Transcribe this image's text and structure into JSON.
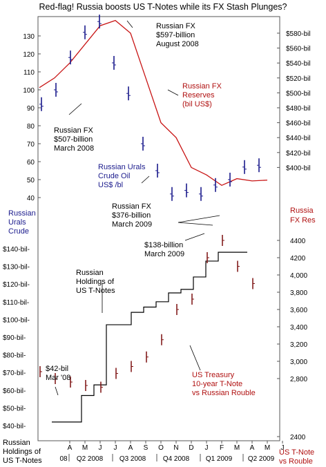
{
  "title": "Red-flag! Russia boosts US T-Notes while its FX Stash Plunges?",
  "colors": {
    "oil": "#1a1a8c",
    "fx": "#c81414",
    "tnote_bars": "#7a0e0e",
    "holdings": "#000000",
    "text_red": "#b01010",
    "text_blue": "#1a1a8c"
  },
  "axes": {
    "top_left_ticks": [
      "130",
      "120",
      "110",
      "100",
      "90",
      "80",
      "70",
      "60",
      "50",
      "40"
    ],
    "top_left_label": [
      "Russian",
      "Urals",
      "Crude"
    ],
    "top_right_ticks": [
      "$580-bil",
      "$560-bil",
      "$540-bil",
      "$520-bil",
      "$500-bil",
      "$480-bil",
      "$460-bil",
      "$440-bil",
      "$420-bil",
      "$400-bil"
    ],
    "top_right_label": [
      "Russia",
      "FX Res"
    ],
    "bottom_left_ticks": [
      "$140-bil-",
      "$130-bil-",
      "$120-bil-",
      "$110-bil-",
      "$100-bil-",
      "$90-bil-",
      "$80-bil-",
      "$70-bil-",
      "$60-bil-",
      "$50-bil-",
      "$40-bil-"
    ],
    "bottom_left_label": [
      "Russian",
      "Holdings of",
      "US T-Notes"
    ],
    "bottom_right_ticks": [
      "4400",
      "4200",
      "4,000",
      "3,800",
      "3,600",
      "3,400",
      "3,200",
      "3,000",
      "2,800",
      "2400"
    ],
    "bottom_right_label": [
      "US T-Note",
      "vs Rouble"
    ],
    "months": [
      "A",
      "M",
      "J",
      "J",
      "A",
      "S",
      "O",
      "N",
      "D",
      "J",
      "F",
      "M",
      "A",
      "M",
      "J"
    ],
    "quarters": [
      "08",
      "Q2 2008",
      "Q3 2008",
      "Q4 2008",
      "Q1 2009",
      "Q2 2009"
    ]
  },
  "annotations": {
    "fx_peak": [
      "Russian FX",
      "$597-billion",
      "August 2008"
    ],
    "fx_reserves": [
      "Russian FX",
      "Reserves",
      "(bil US$)"
    ],
    "fx_march08": [
      "Russian FX",
      "$507-billion",
      "March 2008"
    ],
    "urals": [
      "Russian Urals",
      "Crude Oil",
      "US$ /bl"
    ],
    "fx_march09": [
      "Russian FX",
      "$376-billion",
      "March 2009"
    ],
    "holdings_march09": [
      "$138-billion",
      "March 2009"
    ],
    "holdings_label": [
      "Russian",
      "Holdings of",
      "US T-Notes"
    ],
    "holdings_march08": [
      "$42-bil",
      "Mar '08"
    ],
    "tnote_label": [
      "US Treasury",
      "10-year T-Note",
      "vs Russian Rouble"
    ]
  },
  "chart_data": [
    {
      "type": "line",
      "title": "Russian FX Reserves (bil US$)",
      "x": [
        "2008-03",
        "2008-04",
        "2008-05",
        "2008-06",
        "2008-07",
        "2008-08",
        "2008-09",
        "2008-10",
        "2008-11",
        "2008-12",
        "2009-01",
        "2009-02",
        "2009-03",
        "2009-04",
        "2009-05",
        "2009-06"
      ],
      "series": [
        {
          "name": "Russian FX Reserves",
          "values": [
            507,
            520,
            540,
            565,
            590,
            597,
            580,
            520,
            460,
            440,
            400,
            390,
            376,
            385,
            382,
            383
          ]
        }
      ],
      "ylim": [
        380,
        600
      ]
    },
    {
      "type": "bar",
      "title": "Russian Urals Crude Oil US$ /bl",
      "x": [
        "2008-03",
        "2008-04",
        "2008-05",
        "2008-06",
        "2008-07",
        "2008-08",
        "2008-09",
        "2008-10",
        "2008-11",
        "2008-12",
        "2009-01",
        "2009-02",
        "2009-03",
        "2009-04",
        "2009-05",
        "2009-06"
      ],
      "series": [
        {
          "name": "Russian Urals Crude Oil",
          "values": [
            92,
            100,
            118,
            132,
            138,
            115,
            98,
            70,
            55,
            42,
            44,
            42,
            47,
            50,
            57,
            58
          ]
        }
      ],
      "ylim": [
        35,
        140
      ]
    },
    {
      "type": "line",
      "title": "Russian Holdings of US T-Notes",
      "x": [
        "2008-03",
        "2008-04",
        "2008-05",
        "2008-06",
        "2008-07",
        "2008-08",
        "2008-09",
        "2008-10",
        "2008-11",
        "2008-12",
        "2009-01",
        "2009-02",
        "2009-03",
        "2009-04",
        "2009-05"
      ],
      "series": [
        {
          "name": "Russian Holdings of US T-Notes",
          "values": [
            42,
            57,
            63,
            97,
            97,
            104,
            107,
            110,
            115,
            117,
            124,
            133,
            138,
            138,
            138
          ]
        }
      ],
      "ylim": [
        40,
        145
      ]
    },
    {
      "type": "bar",
      "title": "US Treasury 10-year T-Note vs Russian Rouble",
      "x": [
        "2008-03",
        "2008-04",
        "2008-05",
        "2008-06",
        "2008-07",
        "2008-08",
        "2008-09",
        "2008-10",
        "2008-11",
        "2008-12",
        "2009-01",
        "2009-02",
        "2009-03",
        "2009-04",
        "2009-05"
      ],
      "series": [
        {
          "name": "US T-Note vs Rouble",
          "values": [
            2880,
            2800,
            2760,
            2720,
            2700,
            2860,
            2940,
            3050,
            3250,
            3600,
            3720,
            4200,
            4400,
            4100,
            3900
          ]
        }
      ],
      "ylim": [
        2400,
        4500
      ]
    }
  ]
}
